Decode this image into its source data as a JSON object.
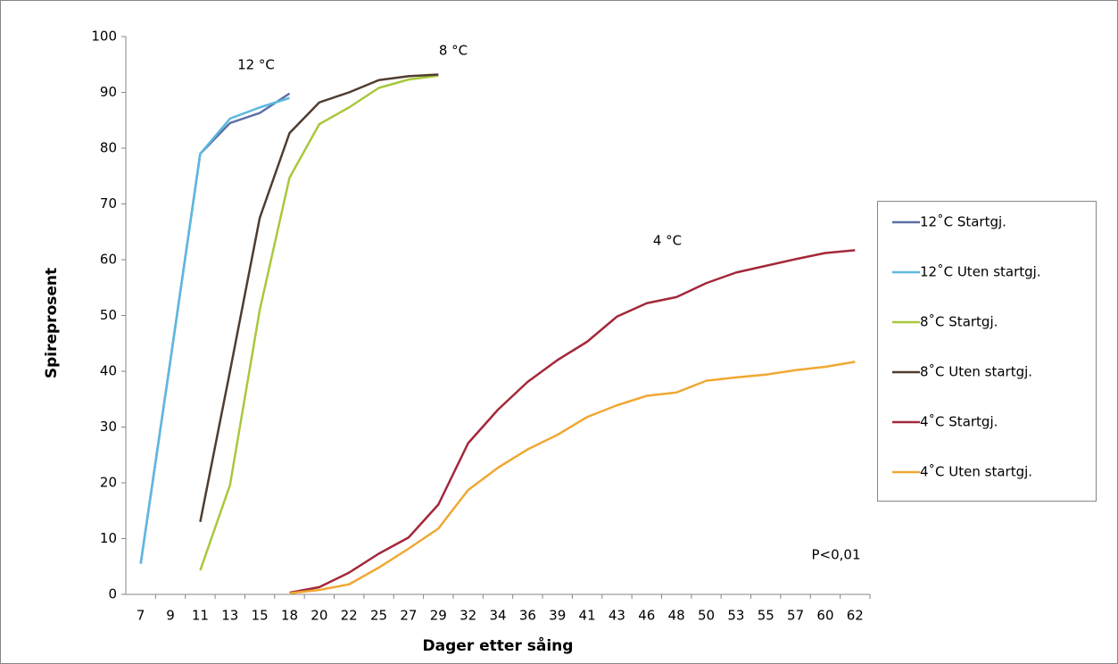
{
  "chart_data": {
    "type": "line",
    "x_label": "Dager etter såing",
    "y_label": "Spireprosent",
    "categories": [
      "7",
      "9",
      "11",
      "13",
      "15",
      "18",
      "20",
      "22",
      "25",
      "27",
      "29",
      "32",
      "34",
      "36",
      "39",
      "41",
      "43",
      "46",
      "48",
      "50",
      "53",
      "55",
      "57",
      "60",
      "62"
    ],
    "series": [
      {
        "name": "12˚C Startgj.",
        "color": "#5b6fa6",
        "values": [
          5.5,
          42,
          79,
          84.5,
          86.3,
          89.8,
          null,
          null,
          null,
          null,
          null,
          null,
          null,
          null,
          null,
          null,
          null,
          null,
          null,
          null,
          null,
          null,
          null,
          null,
          null
        ]
      },
      {
        "name": "12˚C Uten startgj.",
        "color": "#5db8e0",
        "values": [
          5.5,
          42,
          79,
          85.3,
          87.3,
          89,
          null,
          null,
          null,
          null,
          null,
          null,
          null,
          null,
          null,
          null,
          null,
          null,
          null,
          null,
          null,
          null,
          null,
          null,
          null
        ]
      },
      {
        "name": "8˚C Startgj.",
        "color": "#a8c83c",
        "values": [
          null,
          null,
          4.3,
          19.6,
          51,
          74.7,
          84.3,
          87.3,
          90.8,
          92.3,
          93,
          null,
          null,
          null,
          null,
          null,
          null,
          null,
          null,
          null,
          null,
          null,
          null,
          null,
          null
        ]
      },
      {
        "name": "8˚C Uten startgj.",
        "color": "#4f3c2e",
        "values": [
          null,
          null,
          13,
          40,
          67.5,
          82.7,
          88.2,
          90,
          92.2,
          92.9,
          93.2,
          null,
          null,
          null,
          null,
          null,
          null,
          null,
          null,
          null,
          null,
          null,
          null,
          null,
          null
        ]
      },
      {
        "name": "4˚C Startgj.",
        "color": "#a3283a",
        "values": [
          null,
          null,
          null,
          null,
          null,
          0.3,
          1.3,
          3.9,
          7.3,
          10.2,
          16.1,
          27.1,
          33.1,
          38.1,
          42,
          45.3,
          49.8,
          52.2,
          53.3,
          55.8,
          57.7,
          58.9,
          60.1,
          61.2,
          61.7
        ]
      },
      {
        "name": "4˚C Uten startgj.",
        "color": "#f0a832",
        "values": [
          null,
          null,
          null,
          null,
          null,
          0.2,
          0.8,
          1.8,
          4.8,
          8.2,
          11.8,
          18.7,
          22.7,
          26,
          28.6,
          31.8,
          33.9,
          35.6,
          36.2,
          38.3,
          38.9,
          39.4,
          40.2,
          40.8,
          41.7
        ]
      }
    ],
    "ylim": [
      0,
      100
    ],
    "yticks": [
      0,
      10,
      20,
      30,
      40,
      50,
      60,
      70,
      80,
      90,
      100
    ],
    "grid": false,
    "legend": "right",
    "annotations": [
      "12 °C",
      "8 °C",
      "4 °C",
      "P<0,01"
    ]
  }
}
